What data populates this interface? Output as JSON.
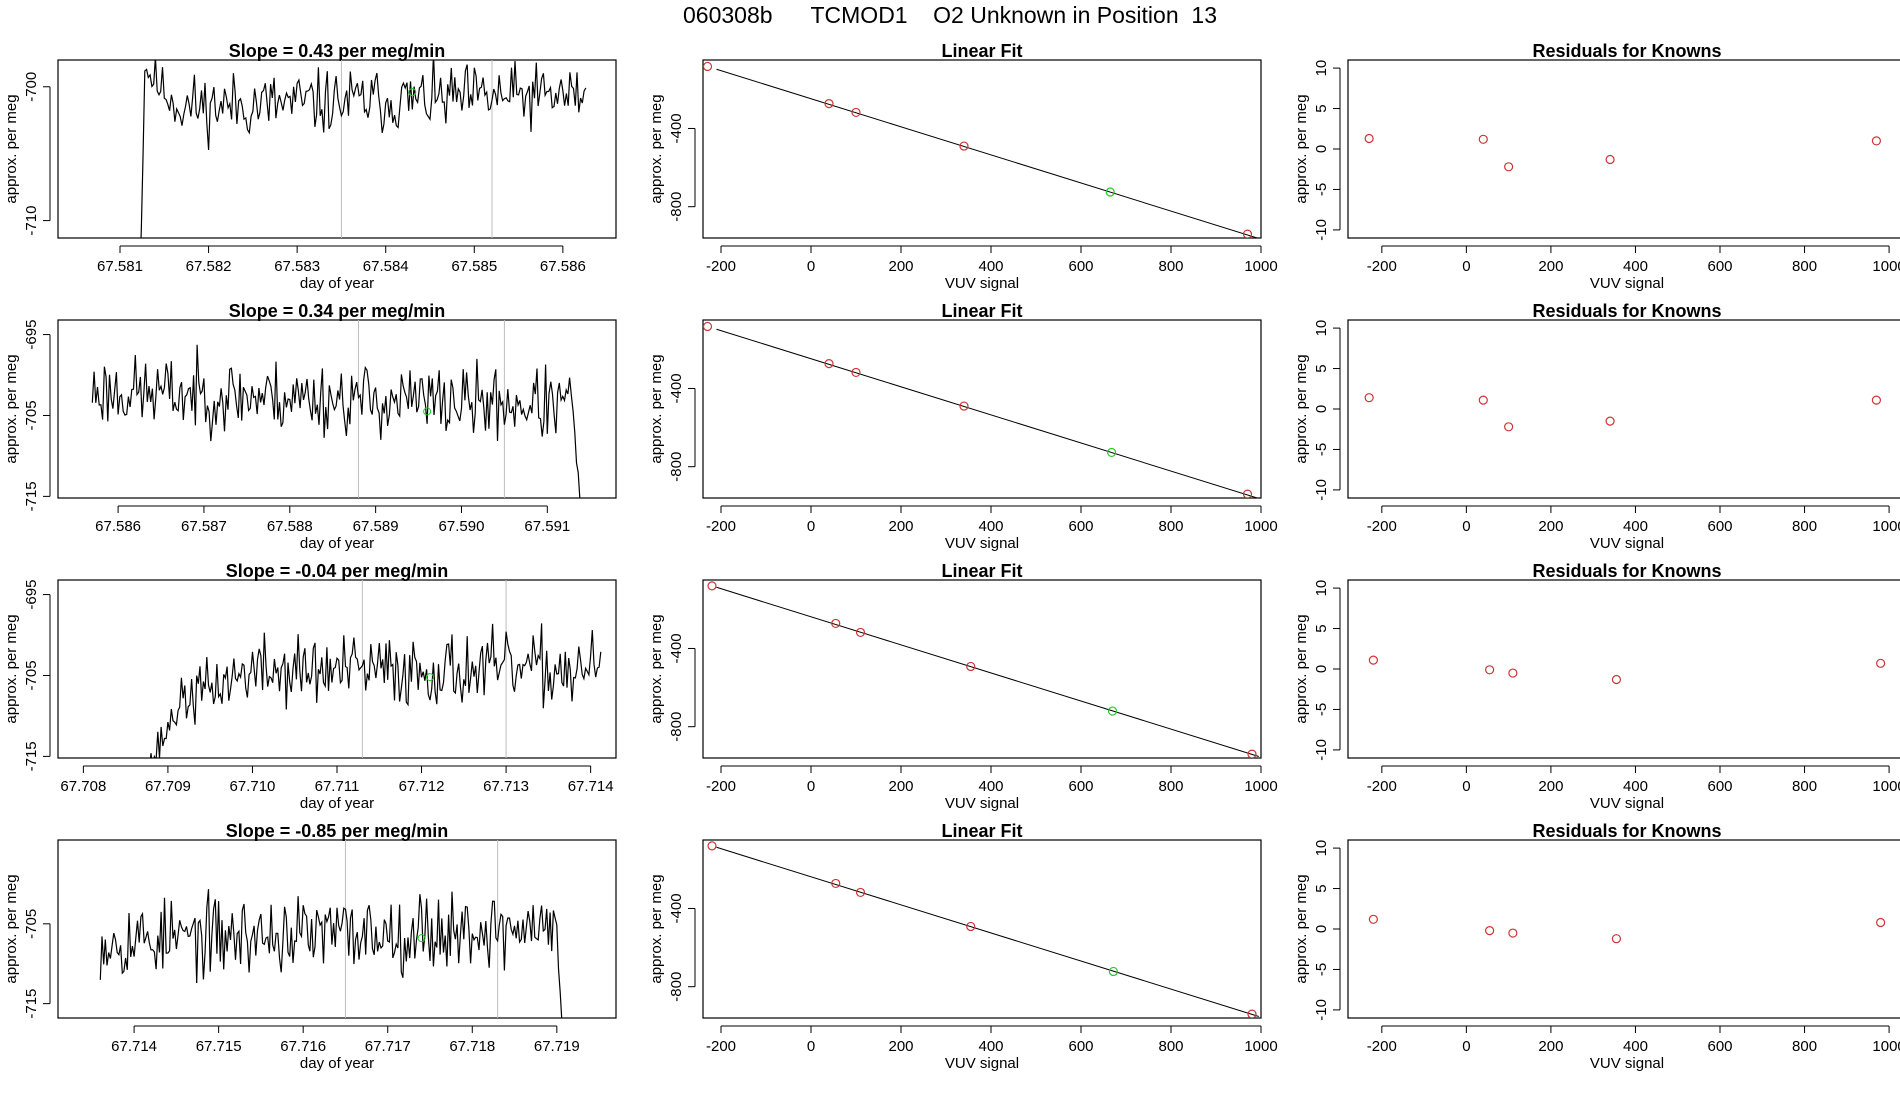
{
  "title": "060308b      TCMOD1    O2 Unknown in Position  13",
  "colors": {
    "line": "#000000",
    "known": "#cd3333",
    "unknown": "#22cc22",
    "vline": "#bebebe"
  },
  "chart_data": [
    {
      "type": "line",
      "row": 0,
      "col": 0,
      "title": "Slope =  0.43  per meg/min",
      "xlabel": "day of year",
      "ylabel": "approx. per meg",
      "xlim": [
        67.5803,
        67.5866
      ],
      "ylim": [
        -711.3,
        -698.0
      ],
      "xticks": [
        67.581,
        67.582,
        67.583,
        67.584,
        67.585,
        67.586
      ],
      "xtick_labels": [
        "67.581",
        "67.582",
        "67.583",
        "67.584",
        "67.585",
        "67.586"
      ],
      "yticks": [
        -710,
        -700
      ],
      "ytick_labels": [
        "-710",
        "-700"
      ],
      "vlines": [
        67.5835,
        67.5852
      ],
      "series": {
        "start": 67.5812,
        "step": 2e-05,
        "segments": [
          [
            -720.0,
            -705.0,
            4,
            0.6
          ],
          [
            -698.5,
            -699.6,
            6,
            0.6
          ],
          [
            -699.6,
            -701.5,
            14,
            0.9
          ],
          [
            -701.5,
            -700.6,
            230,
            1.2
          ]
        ],
        "seed": 11
      },
      "highlight": {
        "x": 67.5843,
        "y": -700.4
      }
    },
    {
      "type": "scatter",
      "row": 0,
      "col": 1,
      "title": "Linear Fit",
      "xlabel": "VUV signal",
      "ylabel": "approx. per meg",
      "xlim": [
        -240,
        1000
      ],
      "ylim": [
        -960,
        -50
      ],
      "xticks": [
        -200,
        0,
        200,
        400,
        600,
        800,
        1000
      ],
      "xtick_labels": [
        "-200",
        "0",
        "200",
        "400",
        "600",
        "800",
        "1000"
      ],
      "yticks": [
        -800,
        -400
      ],
      "ytick_labels": [
        "-800",
        "-400"
      ],
      "fit": {
        "slope": -0.718,
        "intercept": -248
      },
      "knowns": [
        {
          "x": -230,
          "y": -83
        },
        {
          "x": 40,
          "y": -273
        },
        {
          "x": 100,
          "y": -318
        },
        {
          "x": 340,
          "y": -490
        },
        {
          "x": 970,
          "y": -940
        }
      ],
      "unknown": {
        "x": 665,
        "y": -725
      }
    },
    {
      "type": "scatter",
      "row": 0,
      "col": 2,
      "title": "Residuals for Knowns",
      "xlabel": "VUV signal",
      "ylabel": "approx. per meg",
      "xlim": [
        -280,
        1040
      ],
      "ylim": [
        -11,
        11
      ],
      "xticks": [
        -200,
        0,
        200,
        400,
        600,
        800,
        1000
      ],
      "xtick_labels": [
        "-200",
        "0",
        "200",
        "400",
        "600",
        "800",
        "1000"
      ],
      "yticks": [
        -10,
        -5,
        0,
        5,
        10
      ],
      "ytick_labels": [
        "-10",
        "-5",
        "0",
        "5",
        "10"
      ],
      "knowns": [
        {
          "x": -230,
          "y": 1.3
        },
        {
          "x": 40,
          "y": 1.2
        },
        {
          "x": 100,
          "y": -2.2
        },
        {
          "x": 340,
          "y": -1.3
        },
        {
          "x": 970,
          "y": 1.0
        }
      ]
    },
    {
      "type": "line",
      "row": 1,
      "col": 0,
      "title": "Slope =  0.34  per meg/min",
      "xlabel": "day of year",
      "ylabel": "approx. per meg",
      "xlim": [
        67.5853,
        67.5918
      ],
      "ylim": [
        -715.2,
        -693.2
      ],
      "xticks": [
        67.586,
        67.587,
        67.588,
        67.589,
        67.59,
        67.591
      ],
      "xtick_labels": [
        "67.586",
        "67.587",
        "67.588",
        "67.589",
        "67.590",
        "67.591"
      ],
      "yticks": [
        -715,
        -705,
        -695
      ],
      "ytick_labels": [
        "-715",
        "-705",
        "-695"
      ],
      "vlines": [
        67.5888,
        67.5905
      ],
      "series": {
        "start": 67.5857,
        "step": 2e-05,
        "segments": [
          [
            -702.0,
            -703.8,
            280,
            2.2
          ],
          [
            -703.8,
            -716.0,
            5,
            0.8
          ]
        ],
        "seed": 23
      },
      "highlight": {
        "x": 67.5896,
        "y": -704.5
      }
    },
    {
      "type": "scatter",
      "row": 1,
      "col": 1,
      "title": "Linear Fit",
      "xlabel": "VUV signal",
      "ylabel": "approx. per meg",
      "xlim": [
        -240,
        1000
      ],
      "ylim": [
        -960,
        -50
      ],
      "xticks": [
        -200,
        0,
        200,
        400,
        600,
        800,
        1000
      ],
      "xtick_labels": [
        "-200",
        "0",
        "200",
        "400",
        "600",
        "800",
        "1000"
      ],
      "yticks": [
        -800,
        -400
      ],
      "ytick_labels": [
        "-800",
        "-400"
      ],
      "fit": {
        "slope": -0.718,
        "intercept": -248
      },
      "knowns": [
        {
          "x": -230,
          "y": -83
        },
        {
          "x": 40,
          "y": -273
        },
        {
          "x": 100,
          "y": -318
        },
        {
          "x": 340,
          "y": -490
        },
        {
          "x": 970,
          "y": -940
        }
      ],
      "unknown": {
        "x": 668,
        "y": -727
      }
    },
    {
      "type": "scatter",
      "row": 1,
      "col": 2,
      "title": "Residuals for Knowns",
      "xlabel": "VUV signal",
      "ylabel": "approx. per meg",
      "xlim": [
        -280,
        1040
      ],
      "ylim": [
        -11,
        11
      ],
      "xticks": [
        -200,
        0,
        200,
        400,
        600,
        800,
        1000
      ],
      "xtick_labels": [
        "-200",
        "0",
        "200",
        "400",
        "600",
        "800",
        "1000"
      ],
      "yticks": [
        -10,
        -5,
        0,
        5,
        10
      ],
      "ytick_labels": [
        "-10",
        "-5",
        "0",
        "5",
        "10"
      ],
      "knowns": [
        {
          "x": -230,
          "y": 1.4
        },
        {
          "x": 40,
          "y": 1.1
        },
        {
          "x": 100,
          "y": -2.2
        },
        {
          "x": 340,
          "y": -1.5
        },
        {
          "x": 970,
          "y": 1.1
        }
      ]
    },
    {
      "type": "line",
      "row": 2,
      "col": 0,
      "title": "Slope =  -0.04  per meg/min",
      "xlabel": "day of year",
      "ylabel": "approx. per meg",
      "xlim": [
        67.7077,
        67.7143
      ],
      "ylim": [
        -715.2,
        -693.2
      ],
      "xticks": [
        67.708,
        67.709,
        67.71,
        67.711,
        67.712,
        67.713,
        67.714
      ],
      "xtick_labels": [
        "67.708",
        "67.709",
        "67.710",
        "67.711",
        "67.712",
        "67.713",
        "67.714"
      ],
      "yticks": [
        -715,
        -705,
        -695
      ],
      "ytick_labels": [
        "-715",
        "-705",
        "-695"
      ],
      "vlines": [
        67.7113,
        67.713
      ],
      "series": {
        "start": 67.7087,
        "step": 2e-05,
        "segments": [
          [
            -718.0,
            -708.0,
            24,
            1.2
          ],
          [
            -708.0,
            -704.5,
            40,
            1.8
          ],
          [
            -704.5,
            -704.2,
            208,
            2.2
          ]
        ],
        "seed": 37
      },
      "highlight": {
        "x": 67.7121,
        "y": -705.2
      }
    },
    {
      "type": "scatter",
      "row": 2,
      "col": 1,
      "title": "Linear Fit",
      "xlabel": "VUV signal",
      "ylabel": "approx. per meg",
      "xlim": [
        -240,
        1000
      ],
      "ylim": [
        -960,
        -50
      ],
      "xticks": [
        -200,
        0,
        200,
        400,
        600,
        800,
        1000
      ],
      "xtick_labels": [
        "-200",
        "0",
        "200",
        "400",
        "600",
        "800",
        "1000"
      ],
      "yticks": [
        -800,
        -400
      ],
      "ytick_labels": [
        "-800",
        "-400"
      ],
      "fit": {
        "slope": -0.718,
        "intercept": -238
      },
      "knowns": [
        {
          "x": -220,
          "y": -80
        },
        {
          "x": 55,
          "y": -272
        },
        {
          "x": 110,
          "y": -318
        },
        {
          "x": 355,
          "y": -492
        },
        {
          "x": 980,
          "y": -940
        }
      ],
      "unknown": {
        "x": 670,
        "y": -720
      }
    },
    {
      "type": "scatter",
      "row": 2,
      "col": 2,
      "title": "Residuals for Knowns",
      "xlabel": "VUV signal",
      "ylabel": "approx. per meg",
      "xlim": [
        -280,
        1040
      ],
      "ylim": [
        -11,
        11
      ],
      "xticks": [
        -200,
        0,
        200,
        400,
        600,
        800,
        1000
      ],
      "xtick_labels": [
        "-200",
        "0",
        "200",
        "400",
        "600",
        "800",
        "1000"
      ],
      "yticks": [
        -10,
        -5,
        0,
        5,
        10
      ],
      "ytick_labels": [
        "-10",
        "-5",
        "0",
        "5",
        "10"
      ],
      "knowns": [
        {
          "x": -220,
          "y": 1.1
        },
        {
          "x": 55,
          "y": -0.1
        },
        {
          "x": 110,
          "y": -0.5
        },
        {
          "x": 355,
          "y": -1.3
        },
        {
          "x": 980,
          "y": 0.7
        }
      ]
    },
    {
      "type": "line",
      "row": 3,
      "col": 0,
      "title": "Slope =  -0.85  per meg/min",
      "xlabel": "day of year",
      "ylabel": "approx. per meg",
      "xlim": [
        67.7131,
        67.7197
      ],
      "ylim": [
        -716.8,
        -694.5
      ],
      "xticks": [
        67.714,
        67.715,
        67.716,
        67.717,
        67.718,
        67.719
      ],
      "xtick_labels": [
        "67.714",
        "67.715",
        "67.716",
        "67.717",
        "67.718",
        "67.719"
      ],
      "yticks": [
        -715,
        -705
      ],
      "ytick_labels": [
        "-715",
        "-705"
      ],
      "vlines": [
        67.7165,
        67.7183
      ],
      "series": {
        "start": 67.7136,
        "step": 2e-05,
        "segments": [
          [
            -707.0,
            -705.5,
            270,
            2.4
          ],
          [
            -705.5,
            -718.0,
            4,
            0.6
          ]
        ],
        "seed": 53
      },
      "highlight": {
        "x": 67.7174,
        "y": -706.8
      }
    },
    {
      "type": "scatter",
      "row": 3,
      "col": 1,
      "title": "Linear Fit",
      "xlabel": "VUV signal",
      "ylabel": "approx. per meg",
      "xlim": [
        -240,
        1000
      ],
      "ylim": [
        -960,
        -50
      ],
      "xticks": [
        -200,
        0,
        200,
        400,
        600,
        800,
        1000
      ],
      "xtick_labels": [
        "-200",
        "0",
        "200",
        "400",
        "600",
        "800",
        "1000"
      ],
      "yticks": [
        -800,
        -400
      ],
      "ytick_labels": [
        "-800",
        "-400"
      ],
      "fit": {
        "slope": -0.718,
        "intercept": -238
      },
      "knowns": [
        {
          "x": -220,
          "y": -80
        },
        {
          "x": 55,
          "y": -272
        },
        {
          "x": 110,
          "y": -318
        },
        {
          "x": 355,
          "y": -492
        },
        {
          "x": 980,
          "y": -940
        }
      ],
      "unknown": {
        "x": 672,
        "y": -722
      }
    },
    {
      "type": "scatter",
      "row": 3,
      "col": 2,
      "title": "Residuals for Knowns",
      "xlabel": "VUV signal",
      "ylabel": "approx. per meg",
      "xlim": [
        -280,
        1040
      ],
      "ylim": [
        -11,
        11
      ],
      "xticks": [
        -200,
        0,
        200,
        400,
        600,
        800,
        1000
      ],
      "xtick_labels": [
        "-200",
        "0",
        "200",
        "400",
        "600",
        "800",
        "1000"
      ],
      "yticks": [
        -10,
        -5,
        0,
        5,
        10
      ],
      "ytick_labels": [
        "-10",
        "-5",
        "0",
        "5",
        "10"
      ],
      "knowns": [
        {
          "x": -220,
          "y": 1.2
        },
        {
          "x": 55,
          "y": -0.2
        },
        {
          "x": 110,
          "y": -0.5
        },
        {
          "x": 355,
          "y": -1.2
        },
        {
          "x": 980,
          "y": 0.8
        }
      ]
    }
  ]
}
